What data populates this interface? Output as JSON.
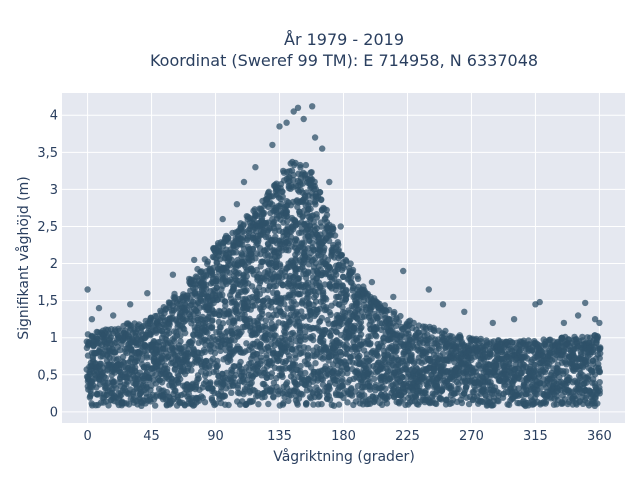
{
  "colors": {
    "plot_background": "#e5e8f0",
    "grid": "#ffffff",
    "marker": "#2f5269",
    "text": "#2a3f5f"
  },
  "chart_data": {
    "type": "scatter",
    "title": "År 1979 - 2019",
    "subtitle": "Koordinat (Sweref 99 TM): E 714958, N 6337048",
    "xlabel": "Vågriktning (grader)",
    "ylabel": "Signifikant våghöjd (m)",
    "xlim": [
      -18,
      378
    ],
    "ylim": [
      -0.15,
      4.3
    ],
    "x_ticks": [
      0,
      45,
      90,
      135,
      180,
      225,
      270,
      315,
      360
    ],
    "x_tick_labels": [
      "0",
      "45",
      "90",
      "135",
      "180",
      "225",
      "270",
      "315",
      "360"
    ],
    "y_ticks": [
      0,
      0.5,
      1,
      1.5,
      2,
      2.5,
      3,
      3.5,
      4
    ],
    "y_tick_labels": [
      "0",
      "0,5",
      "1",
      "1,5",
      "2",
      "2,5",
      "3",
      "3,5",
      "4"
    ],
    "grid": true,
    "marker_opacity": 0.75,
    "envelope": {
      "description_units": "upper bound of the dense point cloud, in metres, by direction in degrees",
      "x": [
        0,
        20,
        45,
        70,
        90,
        110,
        125,
        135,
        145,
        155,
        165,
        180,
        200,
        225,
        250,
        270,
        300,
        330,
        360
      ],
      "y_max": [
        1.05,
        1.15,
        1.3,
        1.75,
        2.25,
        2.6,
        2.9,
        3.2,
        3.4,
        3.35,
        2.9,
        2.1,
        1.55,
        1.25,
        1.1,
        1.0,
        0.95,
        1.0,
        1.05
      ]
    },
    "outliers": {
      "x": [
        0,
        3,
        8,
        18,
        30,
        42,
        60,
        75,
        95,
        105,
        110,
        118,
        130,
        135,
        140,
        145,
        148,
        152,
        158,
        160,
        165,
        170,
        178,
        185,
        200,
        215,
        222,
        240,
        250,
        265,
        285,
        300,
        315,
        318,
        335,
        345,
        350,
        357,
        360
      ],
      "y": [
        1.65,
        1.25,
        1.4,
        1.3,
        1.45,
        1.6,
        1.85,
        2.05,
        2.6,
        2.8,
        3.1,
        3.3,
        3.6,
        3.85,
        3.9,
        4.05,
        4.1,
        3.95,
        4.12,
        3.7,
        3.55,
        3.1,
        2.5,
        2.0,
        1.75,
        1.55,
        1.9,
        1.65,
        1.45,
        1.35,
        1.2,
        1.25,
        1.45,
        1.48,
        1.2,
        1.3,
        1.47,
        1.25,
        1.2
      ]
    }
  }
}
